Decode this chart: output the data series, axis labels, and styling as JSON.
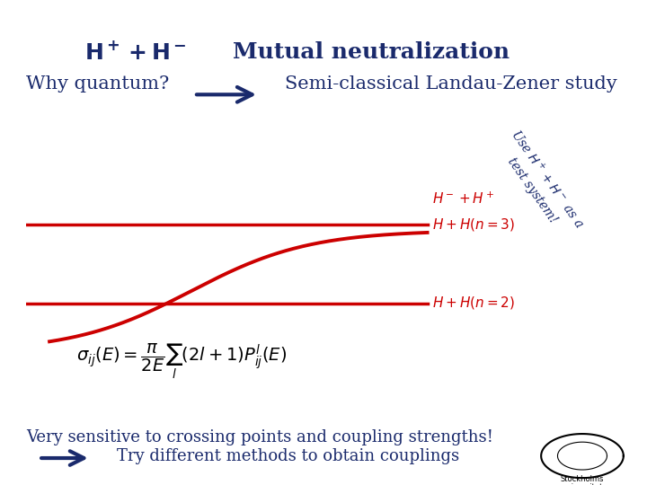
{
  "bg_color": "#ffffff",
  "title_text": "$\\mathbf{H^+ + H^-}$",
  "title_subtitle": "Mutual neutralization",
  "title_color": "#1a2a6c",
  "why_quantum": "Why quantum?",
  "semi_classical": "Semi-classical Landau-Zener study",
  "label_hm_hp": "$H^- +H^+$",
  "label_n3": "$H+H(n=3)$",
  "label_n2": "$H+H(n=2)$",
  "rotated_text": "Use $H^+ + H^-$ as a\ntest system!",
  "formula_text": "$\\sigma_{ij}(E) = \\dfrac{\\pi}{2E} \\sum_{l} (2l+1) P^{l}_{ij}(E)$",
  "bottom_text1": "Very sensitive to crossing points and coupling strengths!",
  "bottom_text2": "Try different methods to obtain couplings",
  "curve_color": "#cc0000",
  "line_color": "#cc0000",
  "text_color": "#1a2a6c",
  "red_text_color": "#cc0000",
  "arrow_color": "#1a2a6c"
}
